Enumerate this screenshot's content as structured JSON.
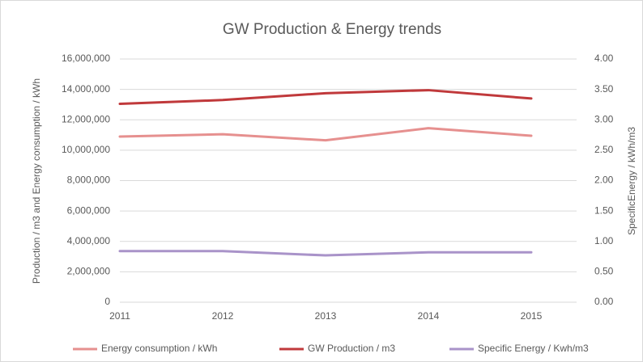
{
  "chart_data": {
    "type": "line",
    "title": "GW Production & Energy trends",
    "y_label": "Production / m3 and Energy consumption / kWh",
    "y2_label": "SpecificEnergy /  kWh/m3",
    "categories": [
      "2011",
      "2012",
      "2013",
      "2014",
      "2015"
    ],
    "series": [
      {
        "name": "Energy consumption / kWh",
        "color": "#e6908f",
        "values": [
          10900000,
          11050000,
          10650000,
          11450000,
          10950000
        ]
      },
      {
        "name": "GW Production / m3",
        "color": "#c0393b",
        "values": [
          13050000,
          13300000,
          13750000,
          13950000,
          13400000
        ]
      },
      {
        "name": "Specific Energy / Kwh/m3",
        "color": "#a993c9",
        "axis": "y2",
        "values": [
          0.84,
          0.84,
          0.77,
          0.82,
          0.82
        ]
      }
    ],
    "ylim": [
      0,
      16000000
    ],
    "yticks": [
      0,
      {
        "value": 2000000,
        "label": "2,000,000"
      },
      {
        "value": 4000000,
        "label": "4,000,000"
      },
      {
        "value": 6000000,
        "label": "6,000,000"
      },
      {
        "value": 8000000,
        "label": "8,000,000"
      },
      {
        "value": 10000000,
        "label": "10,000,000"
      },
      {
        "value": 12000000,
        "label": "12,000,000"
      },
      {
        "value": 14000000,
        "label": "14,000,000"
      },
      {
        "value": 16000000,
        "label": "16,000,000"
      }
    ],
    "y2lim": [
      0,
      4
    ],
    "y2ticks": [
      {
        "value": 0,
        "label": "0.00"
      },
      {
        "value": 0.5,
        "label": "0.50"
      },
      {
        "value": 1,
        "label": "1.00"
      },
      {
        "value": 1.5,
        "label": "1.50"
      },
      {
        "value": 2,
        "label": "2.00"
      },
      {
        "value": 2.5,
        "label": "2.50"
      },
      {
        "value": 3,
        "label": "3.00"
      },
      {
        "value": 3.5,
        "label": "3.50"
      },
      {
        "value": 4,
        "label": "4.00"
      }
    ],
    "grid": true,
    "legend": "bottom"
  }
}
